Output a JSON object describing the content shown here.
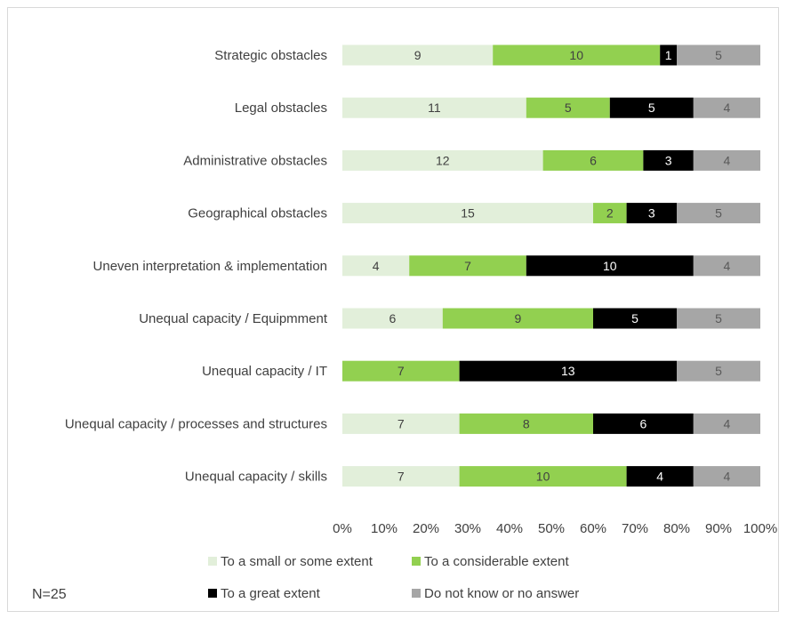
{
  "chart_data": {
    "type": "bar",
    "orientation": "horizontal",
    "stacked": "percent",
    "categories": [
      "Strategic obstacles",
      "Legal obstacles",
      "Administrative obstacles",
      "Geographical obstacles",
      "Uneven interpretation & implementation",
      "Unequal capacity / Equipmment",
      "Unequal capacity / IT",
      "Unequal capacity / processes and structures",
      "Unequal capacity / skills"
    ],
    "series": [
      {
        "name": "To a small or some extent",
        "color": "#e2efda",
        "label_color": "#404040",
        "values": [
          9,
          11,
          12,
          15,
          4,
          6,
          0,
          7,
          7
        ]
      },
      {
        "name": "To a considerable extent",
        "color": "#92d050",
        "label_color": "#404040",
        "values": [
          10,
          5,
          6,
          2,
          7,
          9,
          7,
          8,
          10
        ]
      },
      {
        "name": "To a great extent",
        "color": "#000000",
        "label_color": "#ffffff",
        "values": [
          1,
          5,
          3,
          3,
          10,
          5,
          13,
          6,
          4
        ]
      },
      {
        "name": "Do not know or no answer",
        "color": "#a6a6a6",
        "label_color": "#595959",
        "values": [
          5,
          4,
          4,
          5,
          4,
          5,
          5,
          4,
          4
        ]
      }
    ],
    "xaxis_ticks": [
      "0%",
      "10%",
      "20%",
      "30%",
      "40%",
      "50%",
      "60%",
      "70%",
      "80%",
      "90%",
      "100%"
    ],
    "xlim": [
      0,
      100
    ],
    "grid": false,
    "legend_position": "bottom",
    "title": "",
    "xlabel": "",
    "ylabel": ""
  },
  "note": "N=25"
}
